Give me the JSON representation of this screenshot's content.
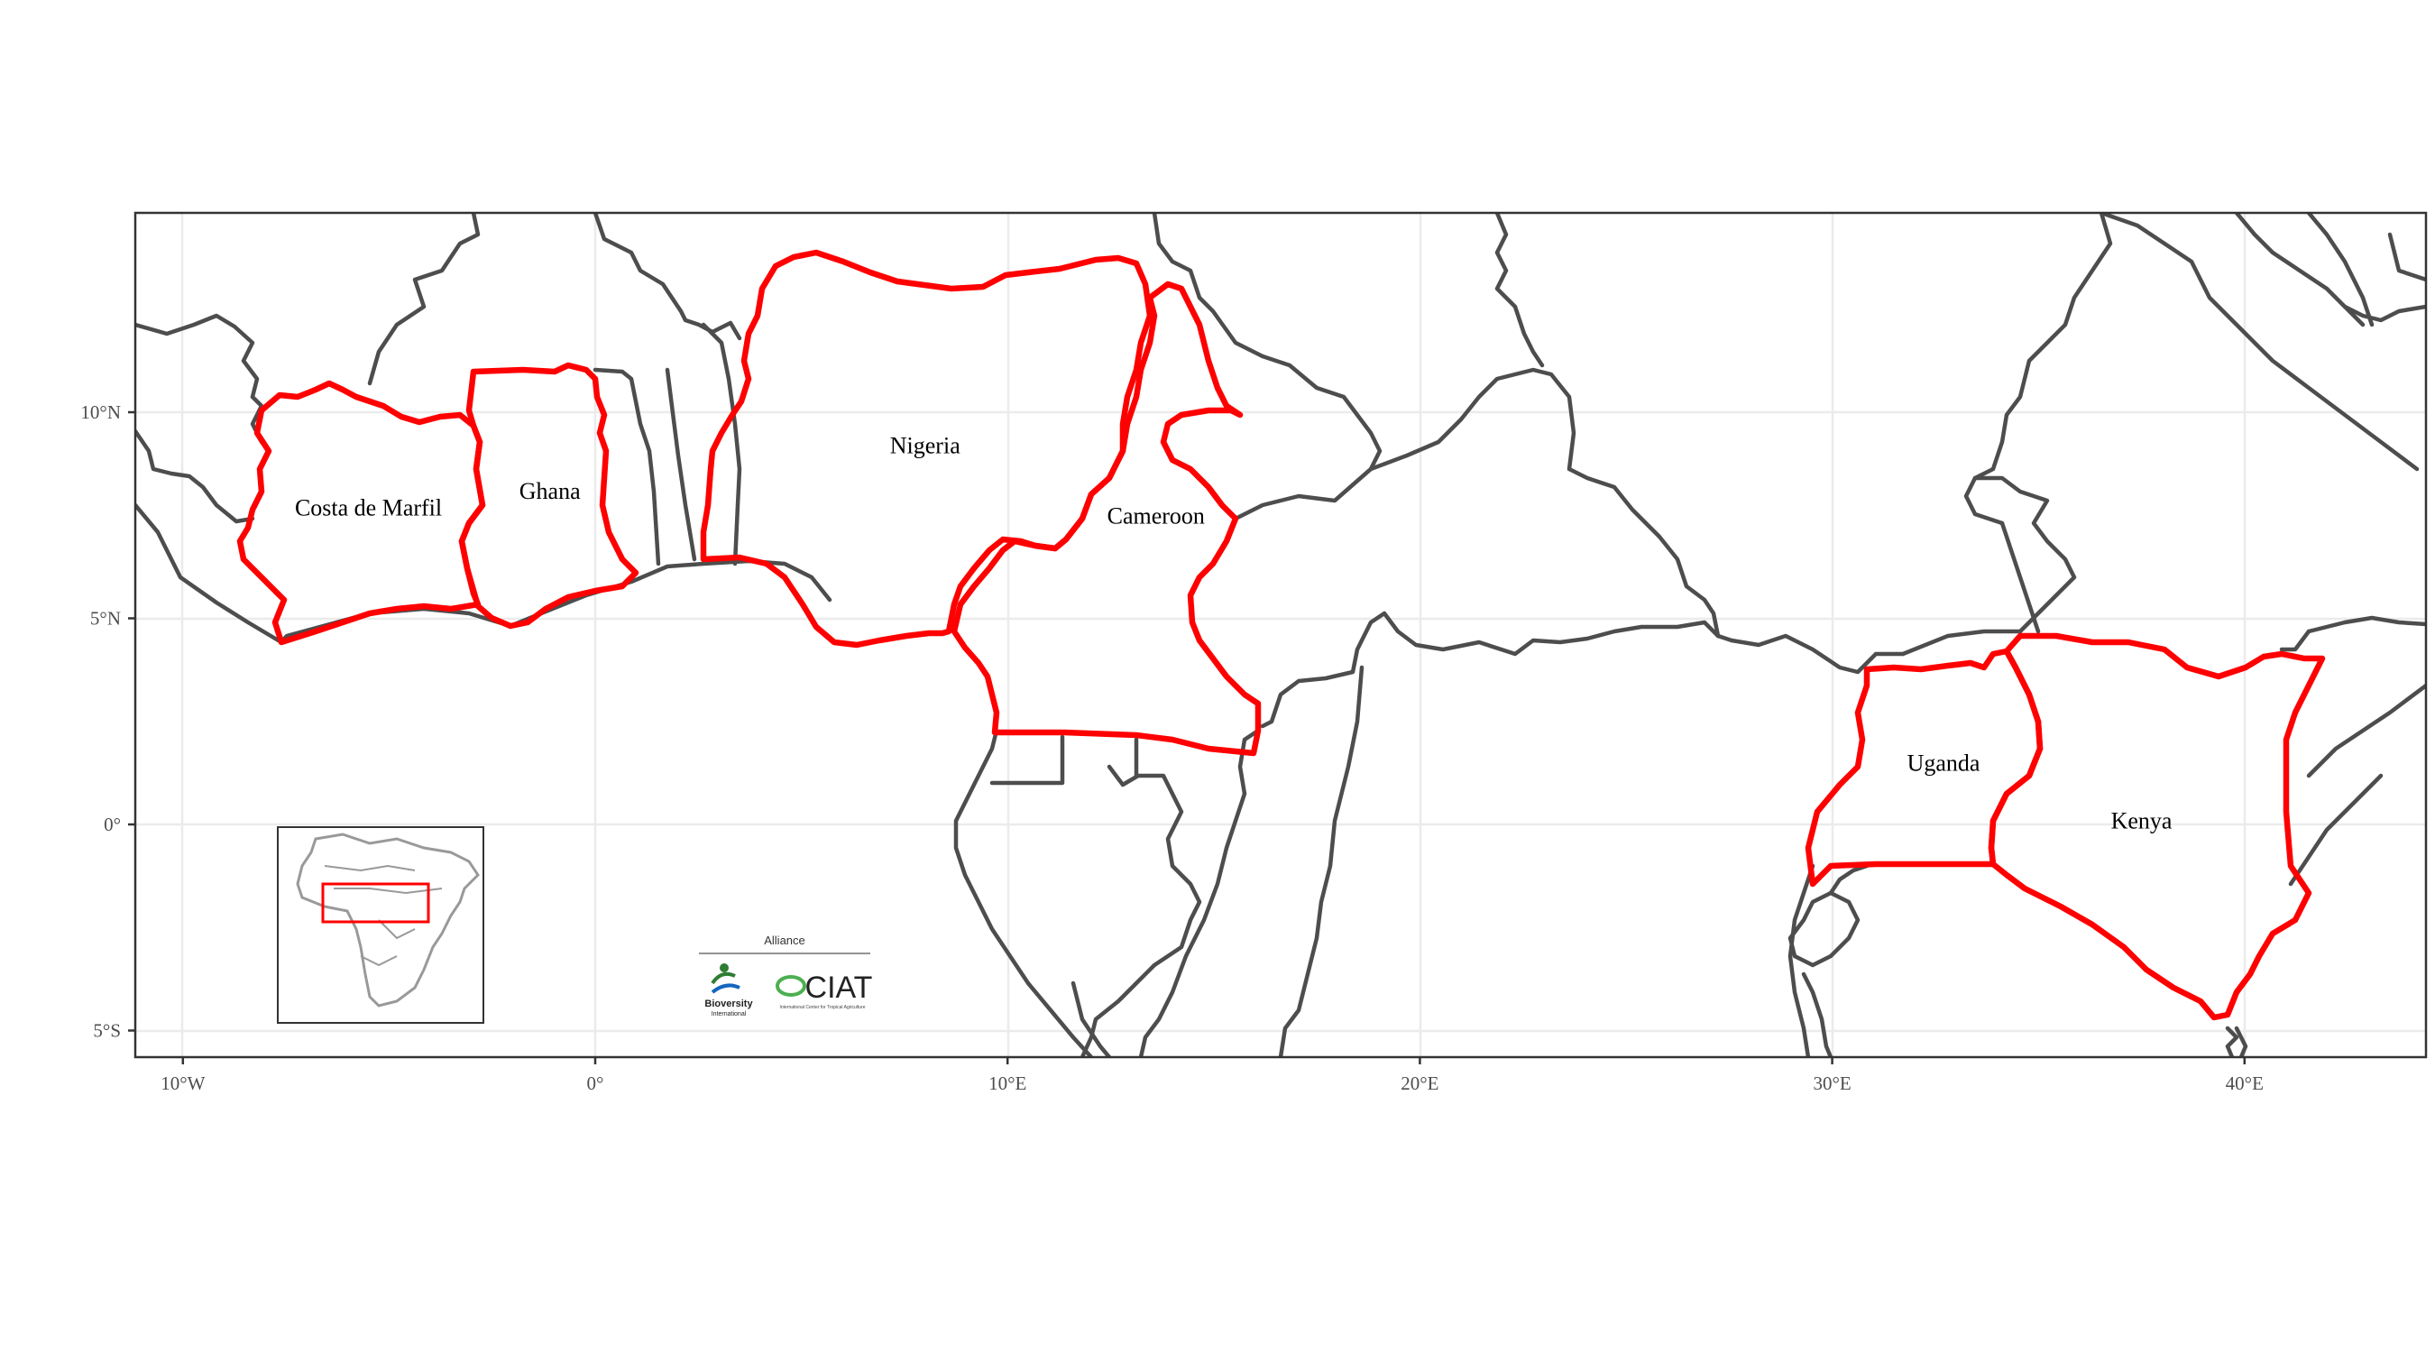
{
  "map": {
    "x_ticks": [
      {
        "value": -10,
        "label": "10°W"
      },
      {
        "value": 0,
        "label": "0°"
      },
      {
        "value": 10,
        "label": "10°E"
      },
      {
        "value": 20,
        "label": "20°E"
      },
      {
        "value": 30,
        "label": "30°E"
      },
      {
        "value": 40,
        "label": "40°E"
      }
    ],
    "y_ticks": [
      {
        "value": 10,
        "label": "10°N"
      },
      {
        "value": 5,
        "label": "5°N"
      },
      {
        "value": 0,
        "label": "0°"
      },
      {
        "value": -5,
        "label": "5°S"
      }
    ],
    "countries": [
      {
        "name": "Costa de Marfil",
        "lon": -5.5,
        "lat": 7.5
      },
      {
        "name": "Ghana",
        "lon": -1.1,
        "lat": 7.9
      },
      {
        "name": "Nigeria",
        "lon": 8.0,
        "lat": 9.0
      },
      {
        "name": "Cameroon",
        "lon": 13.6,
        "lat": 7.3
      },
      {
        "name": "Uganda",
        "lon": 32.7,
        "lat": 1.3
      },
      {
        "name": "Kenya",
        "lon": 37.5,
        "lat": -0.1
      }
    ],
    "highlight_color": "#ff0000",
    "border_color": "#4d4d4d"
  },
  "logo": {
    "top": "Alliance",
    "left_name": "Bioversity",
    "left_sub": "International",
    "right_name": "CIAT",
    "right_sub": "International Center for Tropical Agriculture"
  }
}
